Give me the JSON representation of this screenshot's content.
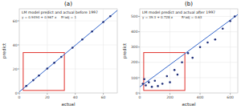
{
  "chart_data": [
    {
      "type": "scatter",
      "title": "LM model predict and actual before 1997",
      "annotations": [
        "(a)",
        "y = 0.9494 + 0.967 x",
        "R²adj = 1"
      ],
      "x_label": "actual",
      "y_label": "predict",
      "x": [
        5,
        10,
        14,
        20,
        25,
        30,
        38,
        45,
        52,
        60,
        65
      ],
      "values": [
        5.8,
        10.6,
        14.5,
        20.3,
        25.1,
        30,
        37.7,
        44.5,
        51.2,
        59,
        63.8
      ],
      "color": "#1f2f7a",
      "fit": {
        "intercept": 0.9494,
        "slope": 0.967,
        "color": "#3366cc"
      },
      "xlim": [
        0,
        70
      ],
      "xticks": [
        0,
        20,
        40,
        60
      ],
      "ylim": [
        0,
        70
      ],
      "yticks": [
        0,
        20,
        40,
        60
      ],
      "grid": true
    },
    {
      "type": "scatter",
      "title": "LM model predict and actual after 1997",
      "annotations": [
        "(b)",
        "y = 39.3 + 0.728 x",
        "R²adj = 0.63"
      ],
      "x_label": "actual",
      "y_label": "predict",
      "x": [
        20,
        30,
        40,
        60,
        80,
        100,
        120,
        150,
        180,
        200,
        230,
        250,
        280,
        320,
        350,
        400,
        450,
        500,
        550,
        600,
        630
      ],
      "values": [
        60,
        90,
        50,
        70,
        40,
        80,
        45,
        60,
        110,
        70,
        150,
        120,
        200,
        260,
        230,
        300,
        330,
        350,
        420,
        470,
        500
      ],
      "color": "#1f2f7a",
      "fit": {
        "intercept": 39.3,
        "slope": 0.728,
        "color": "#3366cc"
      },
      "xlim": [
        0,
        650
      ],
      "xticks": [
        0,
        200,
        400,
        600
      ],
      "ylim": [
        0,
        550
      ],
      "yticks": [
        0,
        100,
        200,
        300,
        400,
        500
      ],
      "grid": true
    }
  ]
}
